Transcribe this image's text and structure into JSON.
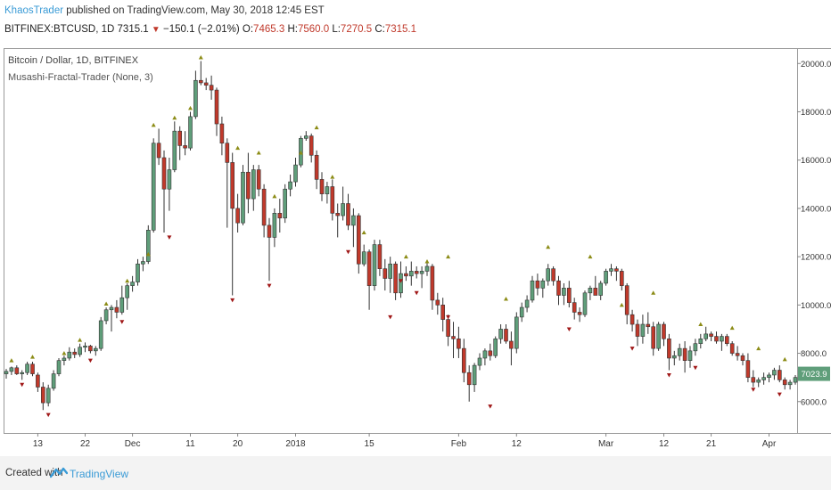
{
  "header": {
    "author": "KhaosTrader",
    "published_text": " published on TradingView.com, May 30, 2018 12:45 EST"
  },
  "symbol_line": {
    "symbol": "BITFINEX:BTCUSD, 1D",
    "last": "7315.1",
    "change": "−150.1 (−2.01%)",
    "open_label": "O:",
    "open": "7465.3",
    "high_label": "H:",
    "high": "7560.0",
    "low_label": "L:",
    "low": "7270.5",
    "close_label": "C:",
    "close": "7315.1"
  },
  "legend": {
    "title": "Bitcoin / Dollar, 1D, BITFINEX",
    "indicator": "Musashi-Fractal-Trader (None, 3)"
  },
  "price_badge": {
    "value": "7023.9",
    "color": "#5f9e7a"
  },
  "footer": {
    "created_with": "Created with",
    "brand": "TradingView",
    "brand_color": "#3a9bd6"
  },
  "colors": {
    "up": "#5f9e7a",
    "down": "#c0392b",
    "fractal_up": "#8c8c16",
    "fractal_down": "#a01818"
  },
  "chart_data": {
    "type": "candlestick",
    "ylim": [
      4700,
      20600
    ],
    "y_ticks": [
      6000,
      8000,
      10000,
      12000,
      14000,
      16000,
      18000,
      20000
    ],
    "y_tick_labels": [
      "6000.0",
      "8000.0",
      "10000.0",
      "12000.0",
      "14000.0",
      "16000.0",
      "18000.0",
      "20000.0"
    ],
    "x_tick_labels": [
      {
        "label": "13",
        "index": 6
      },
      {
        "label": "22",
        "index": 15
      },
      {
        "label": "Dec",
        "index": 24
      },
      {
        "label": "11",
        "index": 35
      },
      {
        "label": "20",
        "index": 44
      },
      {
        "label": "2018",
        "index": 55
      },
      {
        "label": "15",
        "index": 69
      },
      {
        "label": "Feb",
        "index": 86
      },
      {
        "label": "12",
        "index": 97
      },
      {
        "label": "Mar",
        "index": 114
      },
      {
        "label": "12",
        "index": 125
      },
      {
        "label": "21",
        "index": 134
      },
      {
        "label": "Apr",
        "index": 145
      }
    ],
    "ohlc": [
      [
        7150,
        7350,
        6950,
        7250
      ],
      [
        7250,
        7450,
        7100,
        7400
      ],
      [
        7400,
        7500,
        7100,
        7150
      ],
      [
        7150,
        7300,
        6900,
        7200
      ],
      [
        7200,
        7650,
        7100,
        7550
      ],
      [
        7550,
        7650,
        7050,
        7150
      ],
      [
        7100,
        7200,
        6400,
        6600
      ],
      [
        6600,
        6800,
        5650,
        5950
      ],
      [
        5950,
        6700,
        5800,
        6550
      ],
      [
        6550,
        7300,
        6450,
        7150
      ],
      [
        7150,
        7800,
        7050,
        7700
      ],
      [
        7700,
        7900,
        7500,
        7800
      ],
      [
        7800,
        8250,
        7700,
        8050
      ],
      [
        8050,
        8200,
        7800,
        7950
      ],
      [
        7950,
        8400,
        7850,
        8250
      ],
      [
        8250,
        8450,
        8050,
        8300
      ],
      [
        8300,
        8350,
        8000,
        8100
      ],
      [
        8100,
        8300,
        7900,
        8200
      ],
      [
        8200,
        9500,
        8100,
        9350
      ],
      [
        9350,
        9900,
        9200,
        9800
      ],
      [
        9800,
        10000,
        8900,
        9900
      ],
      [
        9900,
        10200,
        9450,
        9700
      ],
      [
        9700,
        10800,
        9600,
        10300
      ],
      [
        10300,
        10900,
        9800,
        10800
      ],
      [
        10800,
        11200,
        10550,
        10950
      ],
      [
        10950,
        11900,
        10800,
        11700
      ],
      [
        11700,
        12000,
        11400,
        11800
      ],
      [
        11800,
        13300,
        11700,
        13100
      ],
      [
        13100,
        16900,
        13000,
        16700
      ],
      [
        16700,
        17300,
        15800,
        16100
      ],
      [
        16100,
        16400,
        13000,
        14800
      ],
      [
        14800,
        16100,
        13900,
        15600
      ],
      [
        15600,
        17600,
        15500,
        17200
      ],
      [
        17200,
        17400,
        16000,
        16600
      ],
      [
        16600,
        17200,
        16200,
        16500
      ],
      [
        16500,
        18000,
        16400,
        17800
      ],
      [
        17800,
        19700,
        17700,
        19300
      ],
      [
        19300,
        20100,
        19100,
        19200
      ],
      [
        19200,
        19400,
        18900,
        19100
      ],
      [
        19100,
        19500,
        18500,
        18900
      ],
      [
        18900,
        19000,
        17000,
        17500
      ],
      [
        17500,
        17800,
        16200,
        16700
      ],
      [
        16700,
        16900,
        13200,
        15900
      ],
      [
        15900,
        16300,
        10400,
        14000
      ],
      [
        14000,
        14600,
        13000,
        13400
      ],
      [
        13400,
        15800,
        13300,
        15500
      ],
      [
        15500,
        16300,
        13800,
        14400
      ],
      [
        14400,
        15800,
        13900,
        15600
      ],
      [
        15600,
        15800,
        14500,
        14800
      ],
      [
        14800,
        15000,
        12800,
        13300
      ],
      [
        13300,
        13600,
        11000,
        12800
      ],
      [
        12800,
        14000,
        12400,
        13800
      ],
      [
        13800,
        14400,
        13000,
        13600
      ],
      [
        13600,
        15000,
        13400,
        14800
      ],
      [
        14800,
        15400,
        14500,
        15100
      ],
      [
        15100,
        16100,
        14900,
        15800
      ],
      [
        15800,
        17000,
        15700,
        16900
      ],
      [
        16900,
        17200,
        16800,
        17000
      ],
      [
        17000,
        17100,
        15900,
        16200
      ],
      [
        16200,
        16400,
        14800,
        15200
      ],
      [
        15200,
        15500,
        14300,
        14600
      ],
      [
        14600,
        15100,
        14200,
        14900
      ],
      [
        14900,
        15200,
        13500,
        13800
      ],
      [
        13800,
        14200,
        12800,
        13700
      ],
      [
        13700,
        14900,
        13500,
        14200
      ],
      [
        14200,
        14600,
        13100,
        13300
      ],
      [
        13300,
        14000,
        12400,
        13700
      ],
      [
        13700,
        13800,
        11300,
        11700
      ],
      [
        11700,
        12500,
        11600,
        12200
      ],
      [
        12200,
        12300,
        9800,
        10800
      ],
      [
        10800,
        12700,
        10600,
        12500
      ],
      [
        12500,
        12700,
        11200,
        11500
      ],
      [
        11500,
        11900,
        10600,
        11100
      ],
      [
        11100,
        12000,
        10500,
        11700
      ],
      [
        11700,
        11800,
        10200,
        10500
      ],
      [
        10500,
        11800,
        10300,
        11300
      ],
      [
        11300,
        11600,
        11000,
        11200
      ],
      [
        11200,
        11800,
        10800,
        11400
      ],
      [
        11400,
        11600,
        11100,
        11300
      ],
      [
        11300,
        11600,
        10700,
        11400
      ],
      [
        11400,
        11800,
        11200,
        11600
      ],
      [
        11600,
        11700,
        9800,
        10200
      ],
      [
        10200,
        10500,
        9600,
        10000
      ],
      [
        10000,
        10300,
        8900,
        9400
      ],
      [
        9400,
        9600,
        8300,
        8700
      ],
      [
        8700,
        9300,
        7800,
        8600
      ],
      [
        8600,
        9100,
        7800,
        8200
      ],
      [
        8200,
        8600,
        6800,
        7200
      ],
      [
        7200,
        7500,
        6000,
        6700
      ],
      [
        6700,
        7600,
        6400,
        7500
      ],
      [
        7500,
        8000,
        7300,
        7800
      ],
      [
        7800,
        8200,
        7500,
        8100
      ],
      [
        8100,
        8400,
        7700,
        7900
      ],
      [
        7900,
        8700,
        7800,
        8600
      ],
      [
        8600,
        9200,
        8400,
        9000
      ],
      [
        9000,
        9200,
        8400,
        8500
      ],
      [
        8500,
        8900,
        7500,
        8200
      ],
      [
        8200,
        9700,
        8000,
        9500
      ],
      [
        9500,
        10100,
        9300,
        9900
      ],
      [
        9900,
        10400,
        9700,
        10200
      ],
      [
        10200,
        11200,
        10100,
        11000
      ],
      [
        11000,
        11300,
        10400,
        10700
      ],
      [
        10700,
        11100,
        10300,
        11000
      ],
      [
        11000,
        11700,
        10800,
        11500
      ],
      [
        11500,
        11600,
        10800,
        11000
      ],
      [
        11000,
        11200,
        10000,
        10400
      ],
      [
        10400,
        10900,
        10000,
        10700
      ],
      [
        10700,
        11000,
        9900,
        10100
      ],
      [
        10100,
        10300,
        9400,
        9700
      ],
      [
        9700,
        9900,
        9300,
        9600
      ],
      [
        9600,
        10600,
        9500,
        10500
      ],
      [
        10500,
        10800,
        10200,
        10700
      ],
      [
        10700,
        11200,
        10500,
        10400
      ],
      [
        10400,
        11000,
        10200,
        10900
      ],
      [
        10900,
        11500,
        10800,
        11400
      ],
      [
        11400,
        11700,
        11200,
        11500
      ],
      [
        11500,
        11600,
        11000,
        11400
      ],
      [
        11400,
        11500,
        10600,
        10800
      ],
      [
        10800,
        10900,
        9200,
        9600
      ],
      [
        9600,
        9800,
        8900,
        9200
      ],
      [
        9200,
        9400,
        8300,
        8700
      ],
      [
        8700,
        9600,
        8400,
        9200
      ],
      [
        9200,
        9700,
        8800,
        9100
      ],
      [
        9100,
        9300,
        7900,
        8200
      ],
      [
        8200,
        9300,
        8100,
        9200
      ],
      [
        9200,
        9300,
        8300,
        8600
      ],
      [
        8600,
        8800,
        7300,
        7800
      ],
      [
        7800,
        8100,
        7500,
        7900
      ],
      [
        7900,
        8400,
        7700,
        8200
      ],
      [
        8200,
        8500,
        7200,
        7700
      ],
      [
        7700,
        8300,
        7400,
        8100
      ],
      [
        8100,
        8600,
        7900,
        8400
      ],
      [
        8400,
        8800,
        8200,
        8600
      ],
      [
        8600,
        9100,
        8500,
        8800
      ],
      [
        8800,
        8900,
        8500,
        8700
      ],
      [
        8700,
        8900,
        8400,
        8500
      ],
      [
        8500,
        8800,
        8100,
        8700
      ],
      [
        8700,
        8800,
        8300,
        8400
      ],
      [
        8400,
        8500,
        7900,
        8000
      ],
      [
        8000,
        8300,
        7700,
        7900
      ],
      [
        7900,
        8000,
        7500,
        7700
      ],
      [
        7700,
        8000,
        6800,
        7000
      ],
      [
        7000,
        7300,
        6600,
        6800
      ],
      [
        6800,
        7000,
        6600,
        6900
      ],
      [
        6900,
        7200,
        6700,
        7000
      ],
      [
        7000,
        7200,
        6800,
        7100
      ],
      [
        7100,
        7400,
        6900,
        7300
      ],
      [
        7300,
        7500,
        6800,
        6900
      ],
      [
        6900,
        7000,
        6500,
        6700
      ],
      [
        6700,
        6900,
        6500,
        6800
      ],
      [
        6800,
        7100,
        6700,
        7000
      ],
      [
        7000,
        7300,
        6900,
        7150
      ]
    ],
    "fractals_up": [
      [
        1,
        7700
      ],
      [
        5,
        7850
      ],
      [
        11,
        8000
      ],
      [
        14,
        8550
      ],
      [
        19,
        10050
      ],
      [
        23,
        11000
      ],
      [
        27,
        12100
      ],
      [
        28,
        17450
      ],
      [
        32,
        17750
      ],
      [
        35,
        18150
      ],
      [
        37,
        20250
      ],
      [
        44,
        16500
      ],
      [
        48,
        16300
      ],
      [
        51,
        14500
      ],
      [
        56,
        16300
      ],
      [
        59,
        17350
      ],
      [
        62,
        15300
      ],
      [
        68,
        13000
      ],
      [
        76,
        12000
      ],
      [
        80,
        11800
      ],
      [
        84,
        12000
      ],
      [
        95,
        10250
      ],
      [
        103,
        12400
      ],
      [
        111,
        12000
      ],
      [
        117,
        10000
      ],
      [
        123,
        10500
      ],
      [
        132,
        9200
      ],
      [
        138,
        9050
      ],
      [
        143,
        8200
      ],
      [
        148,
        7750
      ]
    ],
    "fractals_down": [
      [
        3,
        6700
      ],
      [
        8,
        5450
      ],
      [
        16,
        7700
      ],
      [
        22,
        9300
      ],
      [
        31,
        12800
      ],
      [
        43,
        10200
      ],
      [
        50,
        10800
      ],
      [
        65,
        12200
      ],
      [
        73,
        9500
      ],
      [
        75,
        11000
      ],
      [
        78,
        10500
      ],
      [
        84,
        9500
      ],
      [
        92,
        5800
      ],
      [
        107,
        9000
      ],
      [
        119,
        8200
      ],
      [
        126,
        7100
      ],
      [
        131,
        7400
      ],
      [
        142,
        6500
      ],
      [
        147,
        6300
      ]
    ]
  }
}
